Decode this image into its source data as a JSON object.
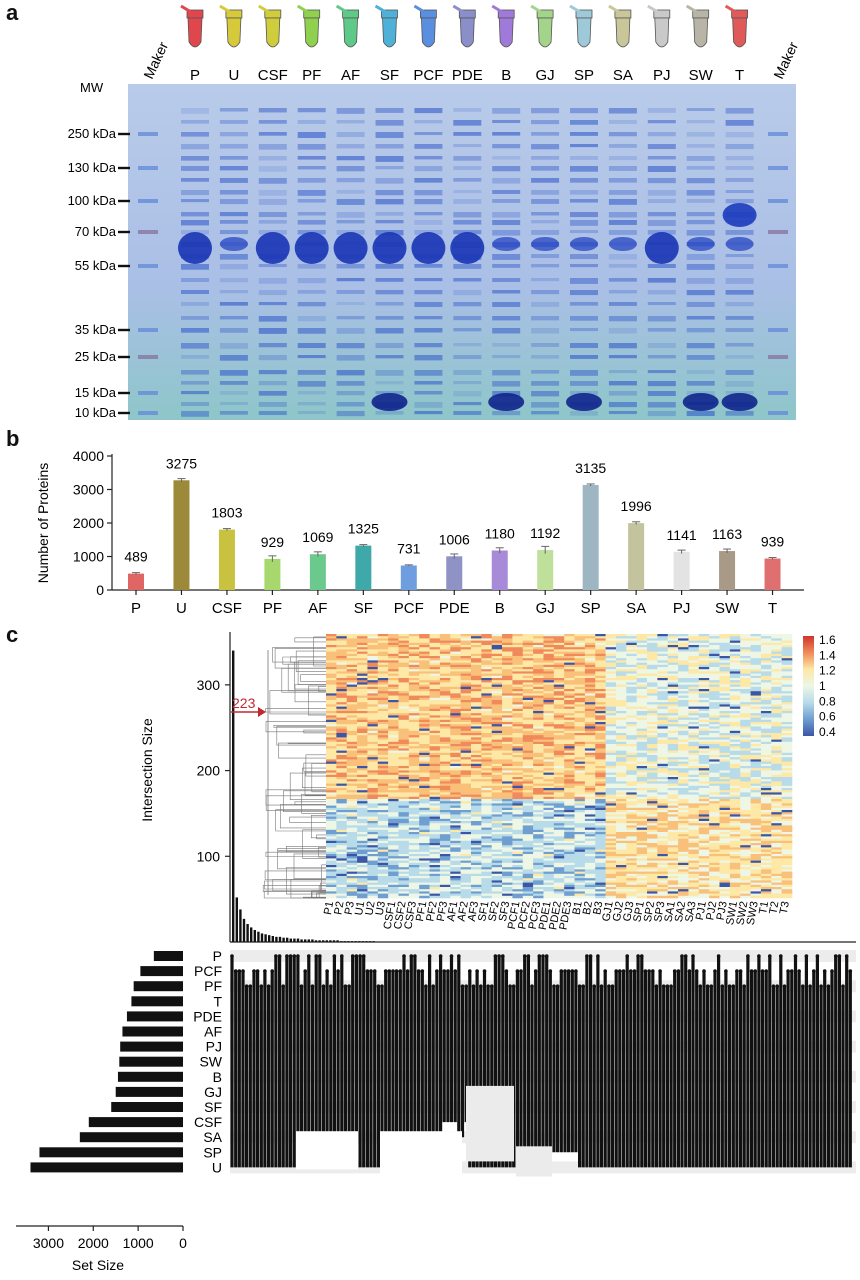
{
  "panels": {
    "a": "a",
    "b": "b",
    "c": "c"
  },
  "gel": {
    "mw_label": "MW",
    "marker_label": "Maker",
    "lanes": [
      "P",
      "U",
      "CSF",
      "PF",
      "AF",
      "SF",
      "PCF",
      "PDE",
      "B",
      "GJ",
      "SP",
      "SA",
      "PJ",
      "SW",
      "T"
    ],
    "tube_colors": [
      "#e0474c",
      "#d6c93a",
      "#cfcd3c",
      "#8fd14f",
      "#5fc98a",
      "#4fb0d8",
      "#5a8fe0",
      "#8a8ec9",
      "#a07ad8",
      "#a4d48a",
      "#9ec9d9",
      "#c9c79a",
      "#c9c9c9",
      "#b9b5a6",
      "#e05a5a"
    ],
    "mw_markers": [
      {
        "label": "250 kDa",
        "value": 250
      },
      {
        "label": "130 kDa",
        "value": 130
      },
      {
        "label": "100 kDa",
        "value": 100
      },
      {
        "label": "70 kDa",
        "value": 70
      },
      {
        "label": "55 kDa",
        "value": 55
      },
      {
        "label": "35 kDa",
        "value": 35
      },
      {
        "label": "25 kDa",
        "value": 25
      },
      {
        "label": "15 kDa",
        "value": 15
      },
      {
        "label": "10 kDa",
        "value": 10
      }
    ]
  },
  "chart_data": [
    {
      "type": "bar",
      "panel": "b",
      "ylabel": "Number of Proteins",
      "ylim": [
        0,
        4000
      ],
      "yticks": [
        0,
        1000,
        2000,
        3000,
        4000
      ],
      "categories": [
        "P",
        "U",
        "CSF",
        "PF",
        "AF",
        "SF",
        "PCF",
        "PDE",
        "B",
        "GJ",
        "SP",
        "SA",
        "PJ",
        "SW",
        "T"
      ],
      "values": [
        489,
        3275,
        1803,
        929,
        1069,
        1325,
        731,
        1006,
        1180,
        1192,
        3135,
        1996,
        1141,
        1163,
        939
      ],
      "errors": [
        30,
        50,
        30,
        90,
        70,
        30,
        20,
        70,
        80,
        110,
        30,
        40,
        50,
        60,
        30
      ],
      "colors": [
        "#e06666",
        "#9c8a3a",
        "#c9c240",
        "#a6d86e",
        "#6cc98e",
        "#3fa8a8",
        "#6f9ee0",
        "#8e92c4",
        "#a78ad8",
        "#bfe09a",
        "#9db6c2",
        "#c3c39e",
        "#e3e3e3",
        "#a99a88",
        "#e07070"
      ]
    },
    {
      "type": "heatmap",
      "panel": "c",
      "colorbar_ticks": [
        "1.6",
        "1.4",
        "1.2",
        "1",
        "0.8",
        "0.6",
        "0.4"
      ],
      "columns": [
        "P1",
        "P2",
        "P3",
        "U1",
        "U2",
        "U3",
        "CSF1",
        "CSF2",
        "CSF3",
        "PF1",
        "PF2",
        "PF3",
        "AF1",
        "AF2",
        "AF3",
        "SF1",
        "SF2",
        "SF3",
        "PCF1",
        "PCF2",
        "PCF3",
        "PDE1",
        "PDE2",
        "PDE3",
        "B1",
        "B2",
        "B3",
        "GJ1",
        "GJ2",
        "GJ3",
        "SP1",
        "SP2",
        "SP3",
        "SA1",
        "SA2",
        "SA3",
        "PJ1",
        "PJ2",
        "PJ3",
        "SW1",
        "SW2",
        "SW3",
        "T1",
        "T2",
        "T3"
      ],
      "annotation": "223"
    },
    {
      "type": "bar",
      "panel": "c",
      "ylabel": "Intersection Size",
      "ylim": [
        0,
        350
      ],
      "yticks": [
        100,
        200,
        300
      ],
      "values": [
        340,
        52,
        38,
        27,
        21,
        17,
        14,
        12,
        10,
        9,
        8,
        7,
        6,
        6,
        5,
        5,
        4,
        4,
        4,
        3,
        3,
        3,
        3,
        2,
        2,
        2,
        2,
        2,
        2,
        2,
        1,
        1,
        1,
        1,
        1,
        1,
        1,
        1,
        1,
        1
      ]
    },
    {
      "type": "bar",
      "panel": "c",
      "orientation": "horizontal",
      "xlabel": "Set Size",
      "xlim": [
        3500,
        0
      ],
      "xticks": [
        3000,
        2000,
        1000,
        0
      ],
      "categories": [
        "P",
        "PCF",
        "PF",
        "T",
        "PDE",
        "AF",
        "PJ",
        "SW",
        "B",
        "GJ",
        "SF",
        "CSF",
        "SA",
        "SP",
        "U"
      ],
      "values": [
        650,
        950,
        1100,
        1150,
        1250,
        1350,
        1400,
        1420,
        1450,
        1500,
        1600,
        2100,
        2300,
        3200,
        3400
      ]
    }
  ]
}
